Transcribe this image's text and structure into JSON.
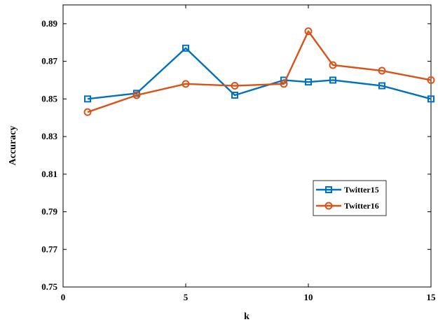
{
  "chart_data": {
    "type": "line",
    "title": "",
    "xlabel": "k",
    "ylabel": "Accuracy",
    "xlim": [
      0,
      15
    ],
    "ylim": [
      0.75,
      0.9
    ],
    "xticks": [
      0,
      5,
      10,
      15
    ],
    "yticks": [
      0.75,
      0.77,
      0.79,
      0.81,
      0.83,
      0.85,
      0.87,
      0.89
    ],
    "ytick_labels": [
      "0.75",
      "0.77",
      "0.79",
      "0.81",
      "0.83",
      "0.85",
      "0.87",
      "0.89"
    ],
    "xtick_labels": [
      "0",
      "5",
      "10",
      "15"
    ],
    "grid": false,
    "legend_position": "right-middle",
    "series": [
      {
        "name": "Twitter15",
        "marker": "square",
        "color": "#0072BD",
        "x": [
          1,
          3,
          5,
          7,
          9,
          10,
          11,
          13,
          15
        ],
        "y": [
          0.85,
          0.853,
          0.877,
          0.852,
          0.86,
          0.859,
          0.86,
          0.857,
          0.85
        ]
      },
      {
        "name": "Twitter16",
        "marker": "circle",
        "color": "#D95319",
        "x": [
          1,
          3,
          5,
          7,
          9,
          10,
          11,
          13,
          15
        ],
        "y": [
          0.843,
          0.852,
          0.858,
          0.857,
          0.858,
          0.886,
          0.868,
          0.865,
          0.86
        ]
      }
    ]
  }
}
